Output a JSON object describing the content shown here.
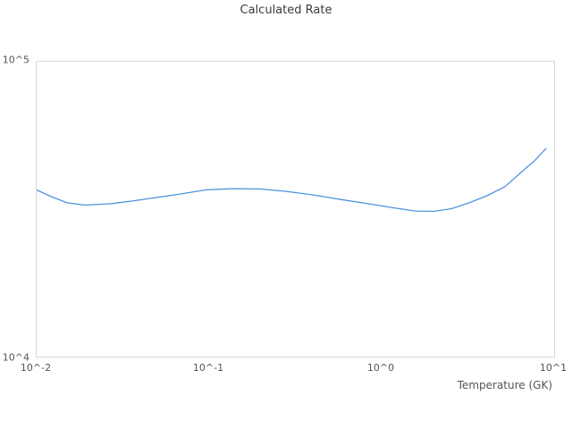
{
  "title": "Calculated Rate",
  "x_axis": {
    "label": "Temperature (GK)",
    "ticks": [
      "10^-2",
      "10^-1",
      "10^0",
      "10^1"
    ]
  },
  "y_axis": {
    "ticks": [
      "10^4",
      "10^5"
    ]
  },
  "colors": {
    "line": "#4f93e0",
    "frame": "#d9d9d9",
    "title_text": "#3a3a3a",
    "tick_text": "#545454",
    "background": "#ffffff"
  },
  "chart_data": {
    "type": "line",
    "title": "Calculated Rate",
    "xlabel": "Temperature (GK)",
    "ylabel": "",
    "x_scale": "log",
    "y_scale": "log",
    "xlim": [
      0.01,
      10
    ],
    "ylim": [
      10000,
      100000
    ],
    "grid": false,
    "legend": false,
    "series": [
      {
        "name": "Calculated Rate",
        "x": [
          0.01,
          0.0118,
          0.015,
          0.019,
          0.027,
          0.0367,
          0.0494,
          0.0666,
          0.0953,
          0.1365,
          0.195,
          0.279,
          0.399,
          0.57,
          0.816,
          1.17,
          1.57,
          2.0,
          2.54,
          3.22,
          4.08,
          5.19,
          6.59,
          7.69,
          8.97
        ],
        "y": [
          36640,
          34990,
          33110,
          32510,
          32890,
          33650,
          34510,
          35400,
          36640,
          36980,
          36900,
          36220,
          35240,
          34040,
          32960,
          31840,
          31050,
          30970,
          31620,
          33110,
          34990,
          37580,
          42560,
          46030,
          50700
        ]
      }
    ]
  }
}
